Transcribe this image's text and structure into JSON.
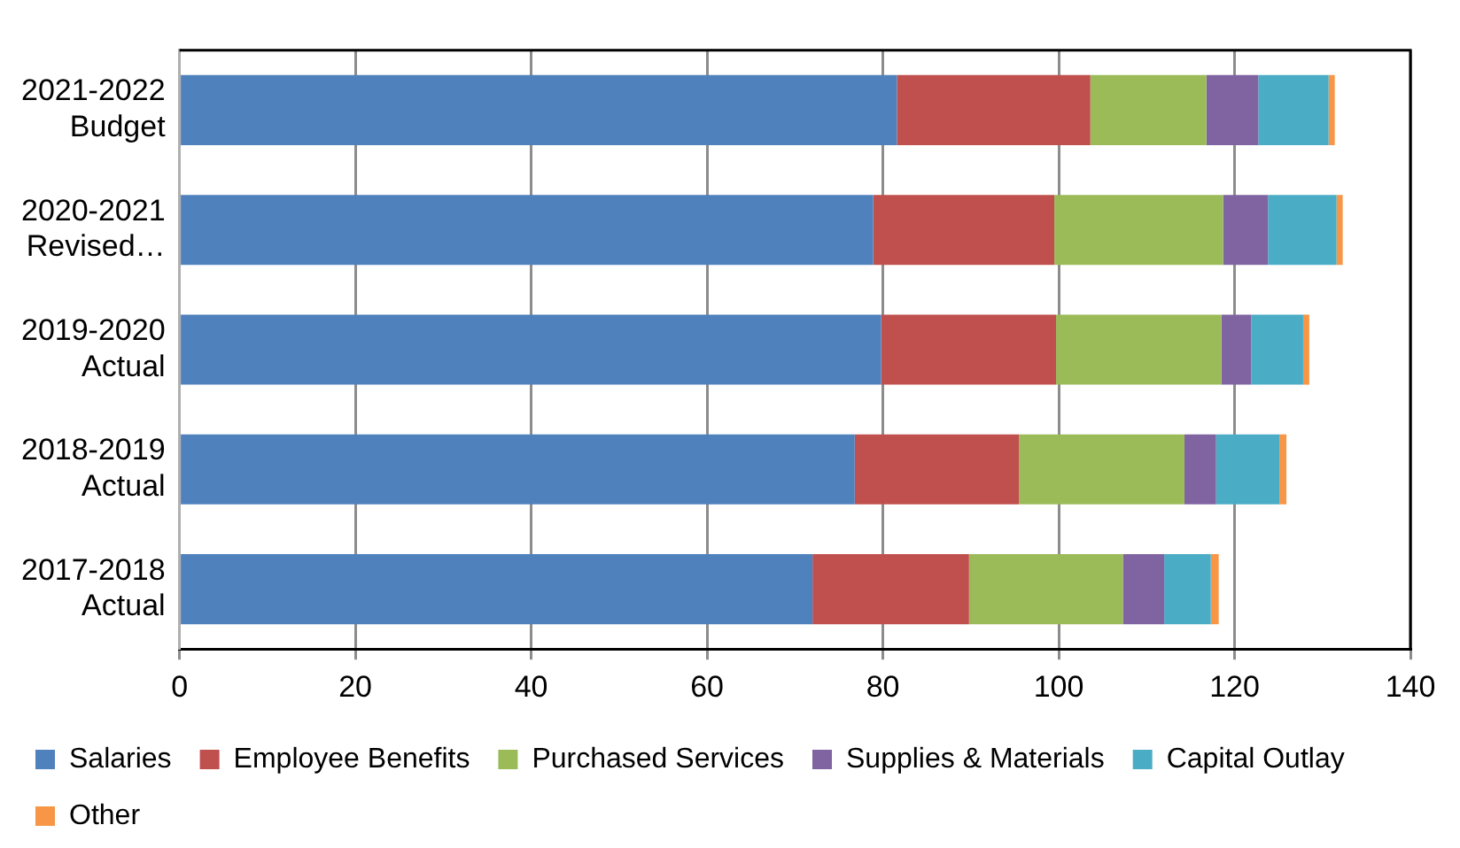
{
  "chart_data": {
    "type": "bar",
    "orientation": "horizontal",
    "stacked": true,
    "categories": [
      "2021-2022 Budget",
      "2020-2021 Revised…",
      "2019-2020 Actual",
      "2018-2019 Actual",
      "2017-2018 Actual"
    ],
    "series": [
      {
        "name": "Salaries",
        "color": "#4f81bd",
        "values": [
          81.6,
          78.9,
          79.8,
          76.8,
          72.0
        ]
      },
      {
        "name": "Employee Benefits",
        "color": "#c0504d",
        "values": [
          22.0,
          20.6,
          19.9,
          18.7,
          17.8
        ]
      },
      {
        "name": "Purchased Services",
        "color": "#9bbb59",
        "values": [
          13.2,
          19.2,
          18.8,
          18.8,
          17.5
        ]
      },
      {
        "name": "Supplies & Materials",
        "color": "#8064a2",
        "values": [
          5.9,
          5.1,
          3.4,
          3.6,
          4.7
        ]
      },
      {
        "name": "Capital Outlay",
        "color": "#4bacc6",
        "values": [
          8.0,
          7.8,
          5.9,
          7.2,
          5.3
        ]
      },
      {
        "name": "Other",
        "color": "#f79646",
        "values": [
          0.7,
          0.7,
          0.7,
          0.8,
          0.9
        ]
      }
    ],
    "xlim": [
      0,
      140
    ],
    "xticks": [
      0,
      20,
      40,
      60,
      80,
      100,
      120,
      140
    ],
    "grid": "x",
    "legend": "bottom"
  }
}
